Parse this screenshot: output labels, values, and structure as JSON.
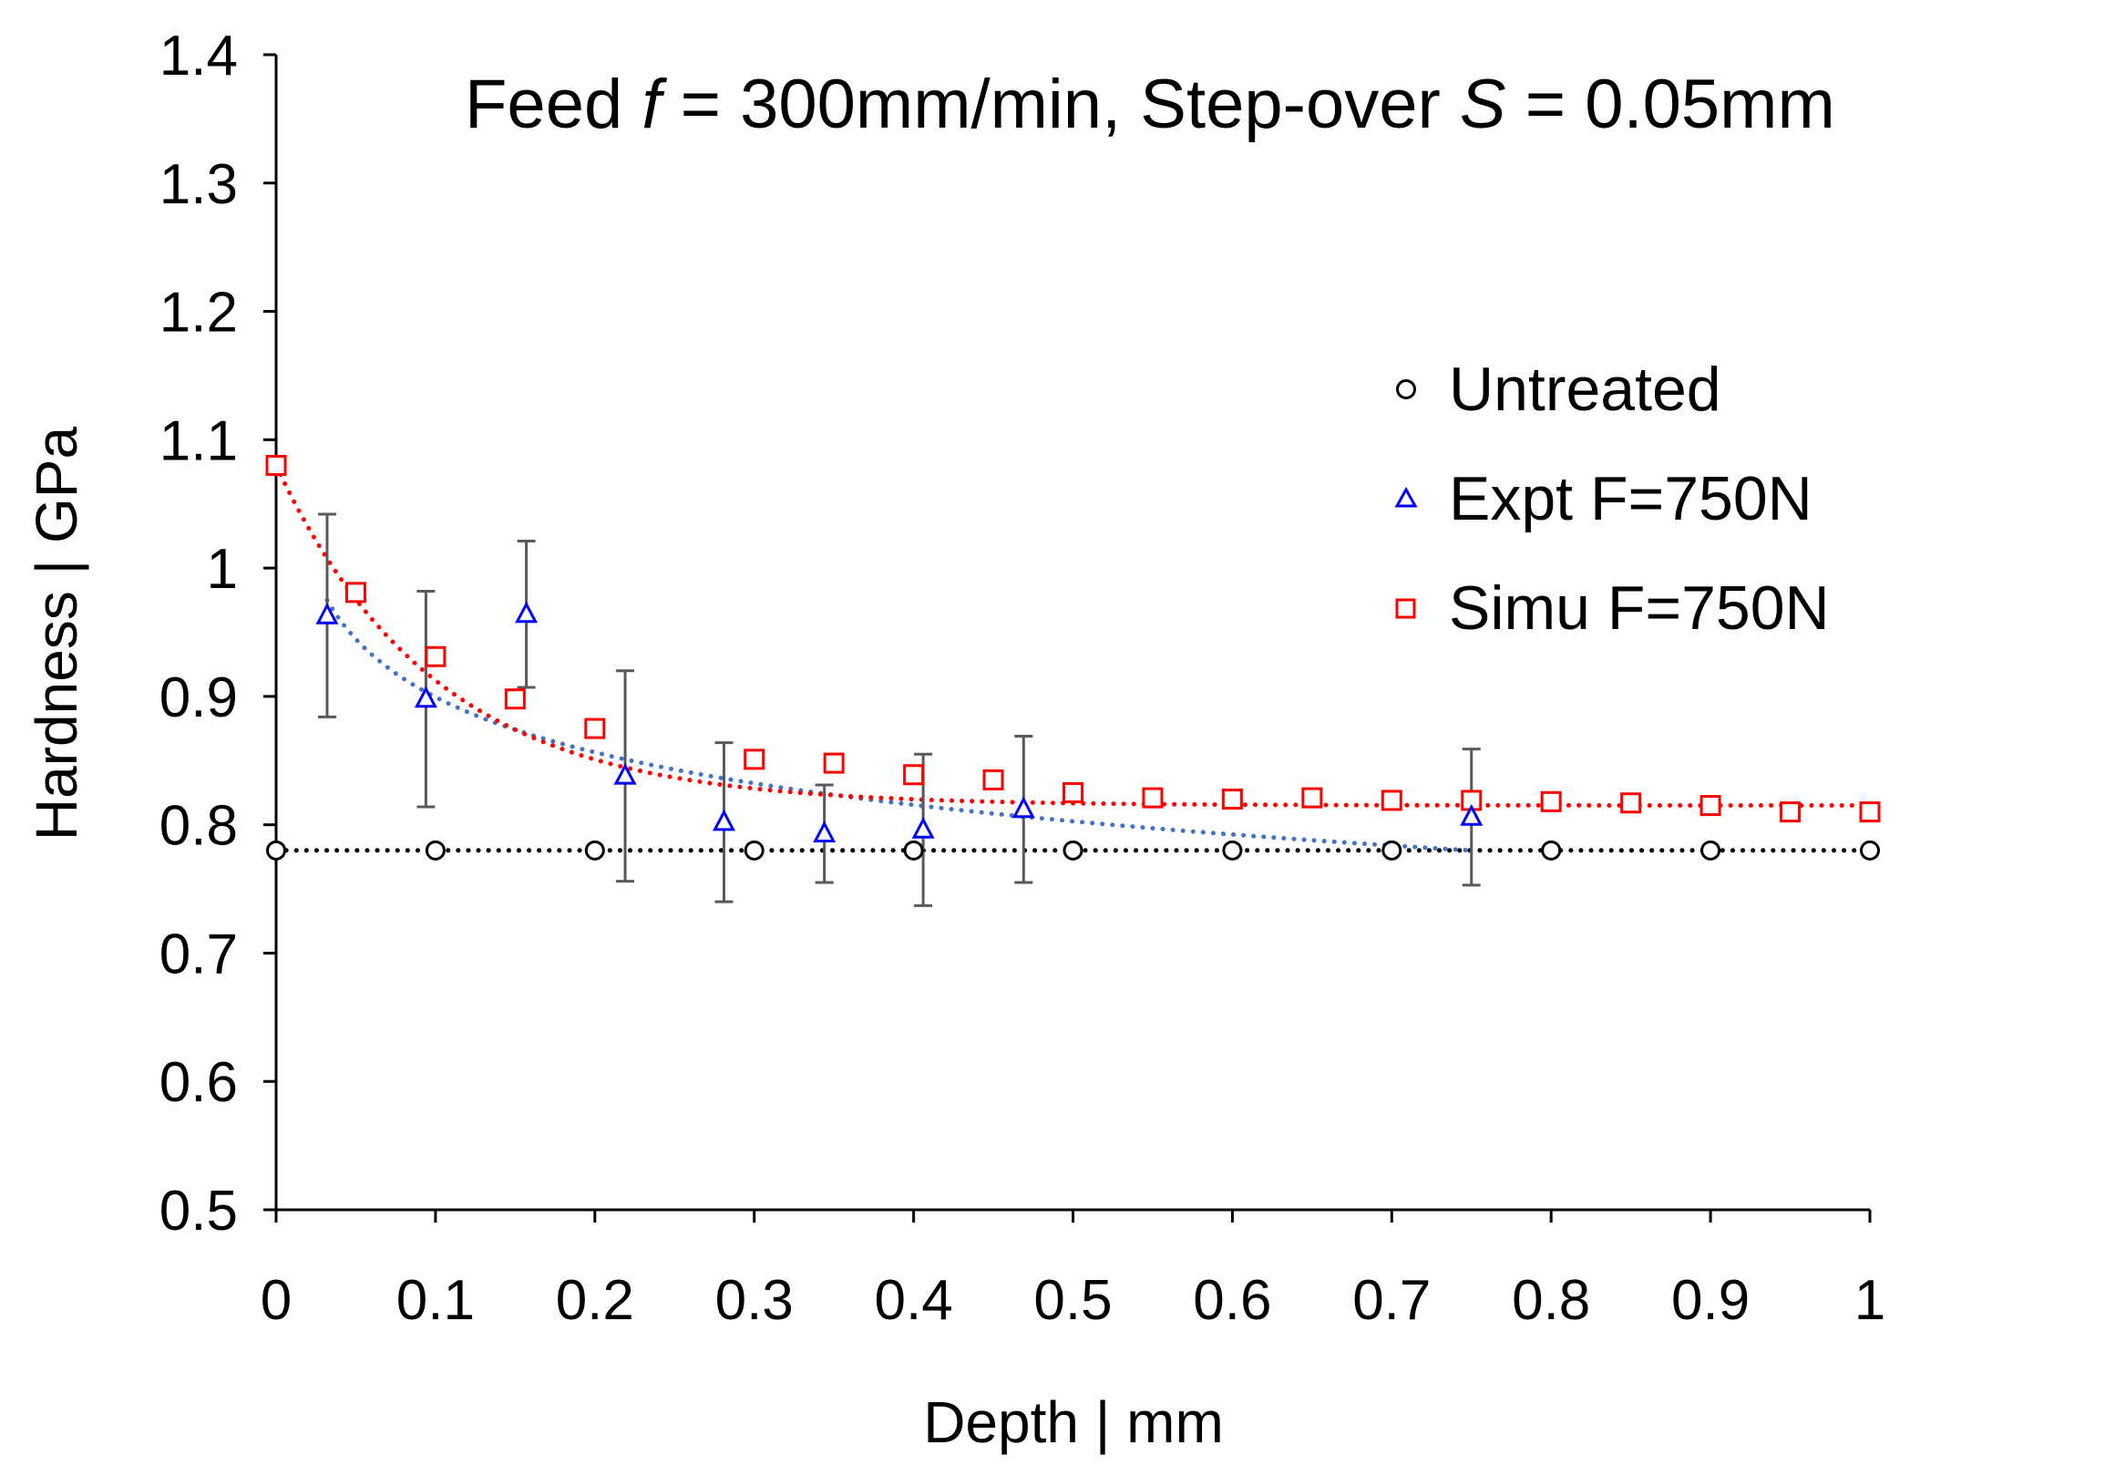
{
  "chart_data": {
    "type": "scatter",
    "title": {
      "prefix": "Feed ",
      "feed_symbol": "f",
      "middle": " = 300mm/min, Step-over ",
      "stepover_symbol": "S",
      "suffix": " = 0.05mm"
    },
    "xlabel": "Depth | mm",
    "ylabel": "Hardness | GPa",
    "xlim": [
      0,
      1
    ],
    "ylim": [
      0.5,
      1.4
    ],
    "x_ticks": [
      0,
      0.1,
      0.2,
      0.3,
      0.4,
      0.5,
      0.6,
      0.7,
      0.8,
      0.9,
      1
    ],
    "x_tick_labels": [
      "0",
      "0.1",
      "0.2",
      "0.3",
      "0.4",
      "0.5",
      "0.6",
      "0.7",
      "0.8",
      "0.9",
      "1"
    ],
    "y_ticks": [
      0.5,
      0.6,
      0.7,
      0.8,
      0.9,
      1.0,
      1.1,
      1.2,
      1.3,
      1.4
    ],
    "y_tick_labels": [
      "0.5",
      "0.6",
      "0.7",
      "0.8",
      "0.9",
      "1",
      "1.1",
      "1.2",
      "1.3",
      "1.4"
    ],
    "grid": false,
    "legend_position": "right",
    "series": [
      {
        "name": "Untreated",
        "marker": "circle",
        "color": "#000000",
        "x": [
          0,
          0.1,
          0.2,
          0.3,
          0.4,
          0.5,
          0.6,
          0.7,
          0.8,
          0.9,
          1.0
        ],
        "y": [
          0.78,
          0.78,
          0.78,
          0.78,
          0.78,
          0.78,
          0.78,
          0.78,
          0.78,
          0.78,
          0.78
        ],
        "trend": {
          "type": "linear",
          "color": "#000000",
          "x_range": [
            0,
            1.0
          ],
          "y": [
            0.78,
            0.78
          ]
        }
      },
      {
        "name": "Expt F=750N",
        "marker": "triangle",
        "color": "#0000ff",
        "x": [
          0.032,
          0.094,
          0.157,
          0.219,
          0.281,
          0.344,
          0.406,
          0.469,
          0.75
        ],
        "y": [
          0.963,
          0.898,
          0.964,
          0.838,
          0.802,
          0.793,
          0.796,
          0.812,
          0.806
        ],
        "error": [
          0.079,
          0.084,
          0.057,
          0.082,
          0.062,
          0.038,
          0.059,
          0.057,
          0.053
        ],
        "error_color": "#595959",
        "trend": {
          "type": "power",
          "color": "#4472c4",
          "x_range": [
            0.032,
            0.75
          ],
          "y_start": 0.975,
          "y_end": 0.78
        }
      },
      {
        "name": "Simu F=750N",
        "marker": "square",
        "color": "#ff0000",
        "x": [
          0,
          0.05,
          0.1,
          0.15,
          0.2,
          0.3,
          0.35,
          0.4,
          0.45,
          0.5,
          0.55,
          0.6,
          0.65,
          0.7,
          0.75,
          0.8,
          0.85,
          0.9,
          0.95,
          1.0
        ],
        "y": [
          1.08,
          0.981,
          0.931,
          0.898,
          0.875,
          0.851,
          0.848,
          0.839,
          0.835,
          0.825,
          0.821,
          0.82,
          0.821,
          0.819,
          0.819,
          0.818,
          0.817,
          0.815,
          0.81,
          0.81
        ],
        "trend": {
          "type": "exp",
          "color": "#ff0000",
          "x_range": [
            0,
            1.0
          ],
          "model": "0.815 + 0.265*exp(-x/0.1)"
        }
      }
    ]
  }
}
